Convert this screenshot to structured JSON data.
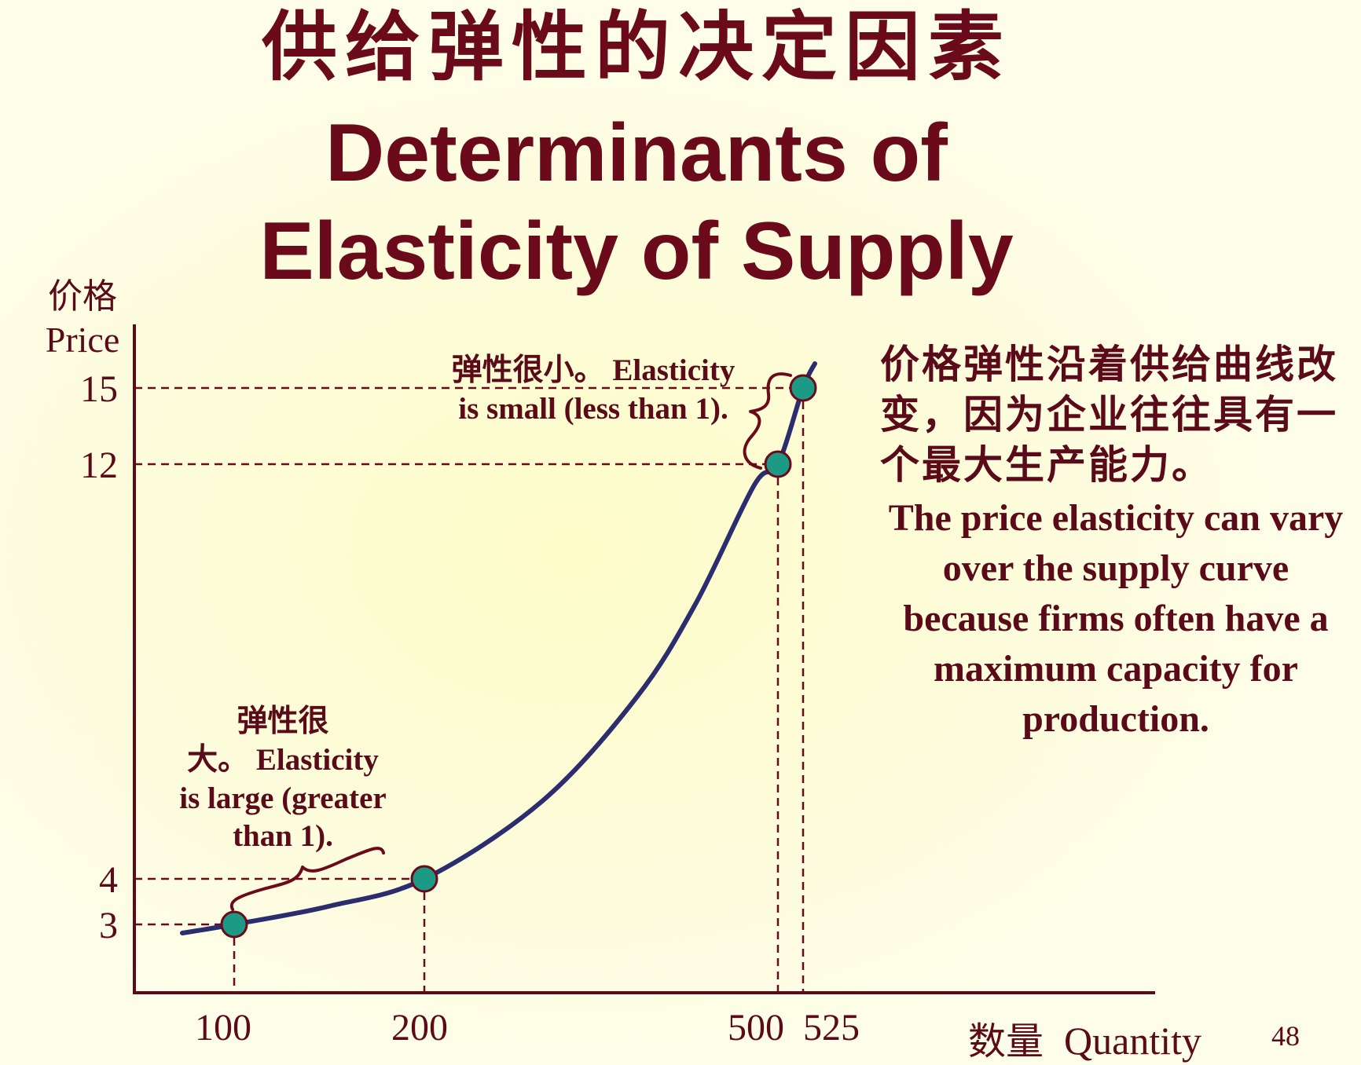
{
  "title_zh": "供给弹性的决定因素",
  "title_en_line1": "Determinants of",
  "title_en_line2": "Elasticity of Supply",
  "y_axis": {
    "label_zh": "价格",
    "label_en": "Price"
  },
  "x_axis": {
    "label_zh": "数量",
    "label_en": "Quantity"
  },
  "annotation_small": {
    "zh": "弹性很小。",
    "en_line1": "Elasticity",
    "en_line2": "is small (less than 1)."
  },
  "annotation_large": {
    "zh_line1": "弹性很",
    "zh_line2": "大。",
    "en_line1": "Elasticity",
    "en_line2": "is large (greater",
    "en_line3": "than 1)."
  },
  "explanation": {
    "zh": "价格弹性沿着供给曲线改变，因为企业往往具有一个最大生产能力。",
    "en": "The price elasticity can vary over the supply curve because firms often have a maximum capacity for production."
  },
  "page_number": "48",
  "colors": {
    "text": "#5a0a18",
    "axis": "#5a0a18",
    "curve": "#2c2d6e",
    "dot": "#1d9a86",
    "background": "#fdfcd6"
  },
  "chart_data": {
    "type": "line",
    "title": "",
    "xlabel": "数量 Quantity",
    "ylabel": "价格 Price",
    "grid": false,
    "legend": "none",
    "x_ticks": [
      100,
      200,
      500,
      525
    ],
    "y_ticks": [
      3,
      4,
      12,
      15
    ],
    "series": [
      {
        "curve_points": [
          [
            48,
            2.85
          ],
          [
            100,
            3
          ],
          [
            150,
            3.4
          ],
          [
            200,
            4
          ],
          [
            300,
            5.5
          ],
          [
            380,
            7.5
          ],
          [
            430,
            9.3
          ],
          [
            480,
            11.6
          ],
          [
            500,
            12
          ],
          [
            525,
            15
          ],
          [
            535,
            15.6
          ]
        ],
        "highlighted_points": [
          [
            100,
            3
          ],
          [
            200,
            4
          ],
          [
            500,
            12
          ],
          [
            525,
            15
          ]
        ]
      }
    ]
  }
}
